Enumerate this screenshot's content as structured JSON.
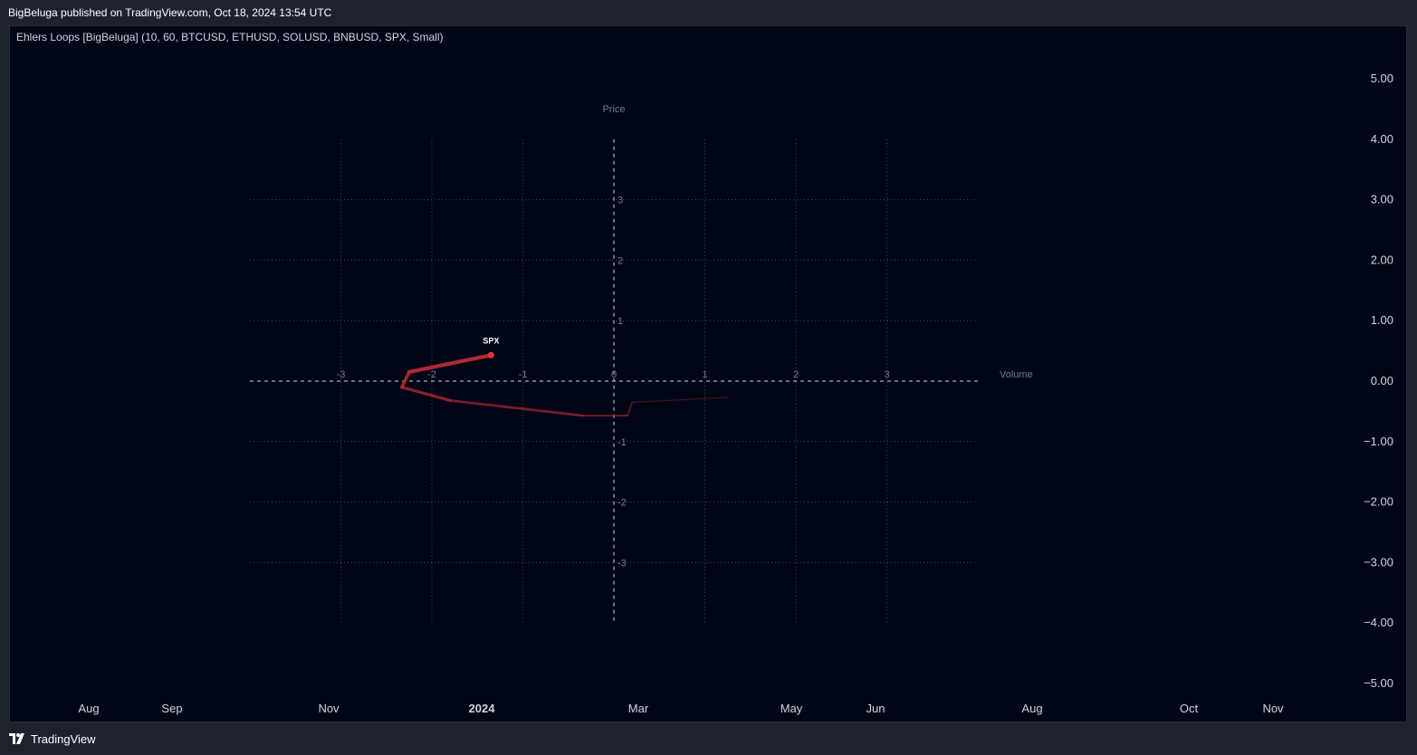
{
  "header": {
    "published_text": "BigBeluga published on TradingView.com, Oct 18, 2024 13:54 UTC"
  },
  "indicator": {
    "legend_text": "Ehlers Loops [BigBeluga] (10, 60, BTCUSD, ETHUSD, SOLUSD, BNBUSD, SPX, Small)"
  },
  "footer": {
    "brand": "TradingView",
    "logo_icon": "tradingview-logo-icon"
  },
  "colors": {
    "background": "#010617",
    "frame": "#1e222d",
    "grid": "#787b86",
    "loop": "#b22833",
    "axis_text": "#d1d4dc"
  },
  "chart_data": {
    "type": "line",
    "price_axis": {
      "labels": [
        "5.00",
        "4.00",
        "3.00",
        "2.00",
        "1.00",
        "0.00",
        "−1.00",
        "−2.00",
        "−3.00",
        "−4.00",
        "−5.00"
      ],
      "values": [
        5,
        4,
        3,
        2,
        1,
        0,
        -1,
        -2,
        -3,
        -4,
        -5
      ]
    },
    "time_axis": {
      "labels": [
        "Aug",
        "Sep",
        "Nov",
        "2024",
        "Mar",
        "May",
        "Jun",
        "Aug",
        "Oct",
        "Nov"
      ]
    },
    "loop_plot": {
      "x_axis_title": "Volume",
      "y_axis_title": "Price",
      "x_range": [
        -4,
        4
      ],
      "y_range": [
        -4,
        4
      ],
      "x_ticks": [
        "-3",
        "-2",
        "-1",
        "0",
        "1",
        "2",
        "3"
      ],
      "y_ticks": [
        "3",
        "2",
        "1",
        "-1",
        "-2",
        "-3"
      ],
      "grid": true,
      "series": [
        {
          "name": "SPX",
          "color": "#b22833",
          "points": [
            {
              "x": 1.25,
              "y": -0.27
            },
            {
              "x": 0.2,
              "y": -0.35
            },
            {
              "x": 0.15,
              "y": -0.57
            },
            {
              "x": -0.35,
              "y": -0.57
            },
            {
              "x": -1.8,
              "y": -0.32
            },
            {
              "x": -2.33,
              "y": -0.1
            },
            {
              "x": -2.25,
              "y": 0.15
            },
            {
              "x": -1.35,
              "y": 0.43
            }
          ]
        }
      ]
    }
  }
}
